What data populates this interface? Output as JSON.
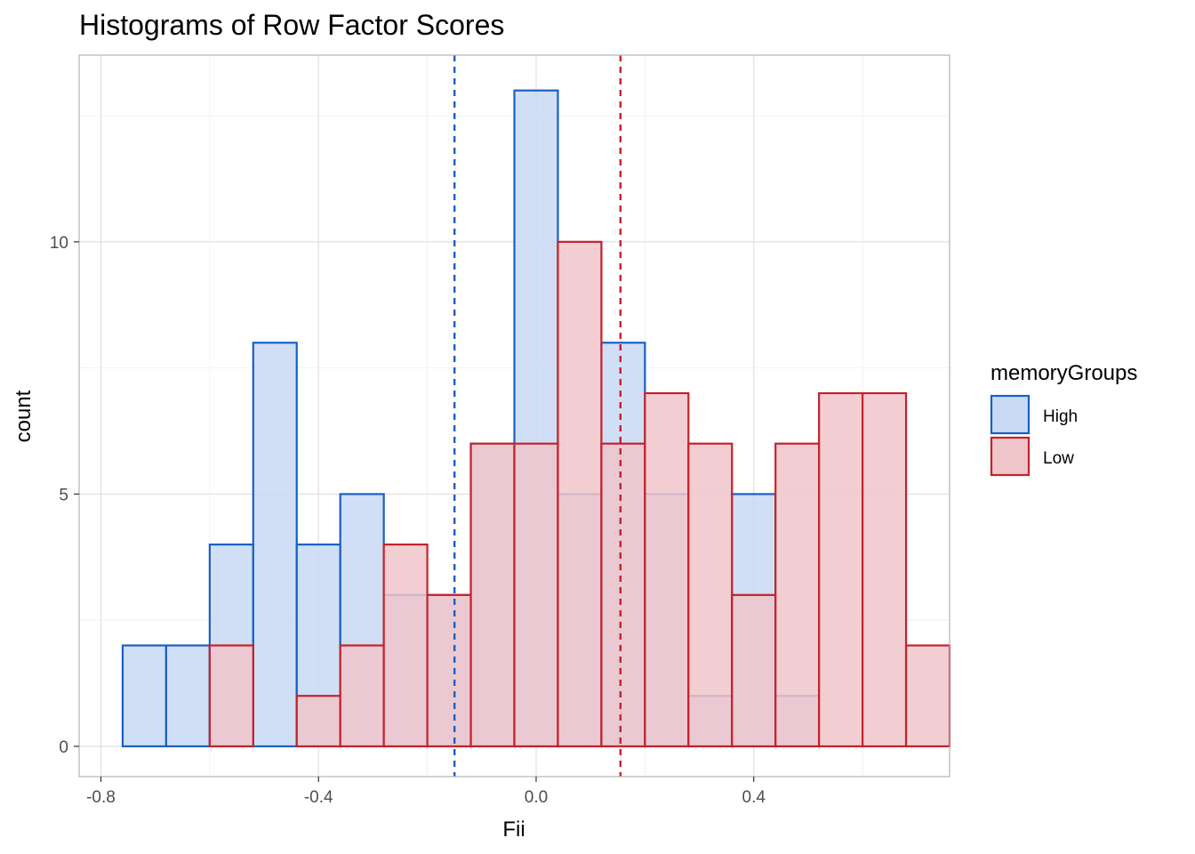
{
  "chart_data": {
    "type": "histogram",
    "title": "Histograms of Row Factor Scores",
    "xlabel": "Fii",
    "ylabel": "count",
    "xlim": [
      -0.84,
      0.76
    ],
    "ylim": [
      -0.6,
      13.7
    ],
    "x_ticks": [
      -0.8,
      -0.4,
      0.0,
      0.4
    ],
    "x_tick_labels": [
      "-0.8",
      "-0.4",
      "0.0",
      "0.4"
    ],
    "y_ticks": [
      0,
      5,
      10
    ],
    "y_tick_labels": [
      "0",
      "5",
      "10"
    ],
    "grid": true,
    "legend": {
      "title": "memoryGroups",
      "placement": "right"
    },
    "bin_start": -0.76,
    "bin_width": 0.08,
    "series": [
      {
        "name": "High",
        "line_color": "#1a5fc4",
        "fill_color": "#c8d9f3",
        "counts": [
          2,
          2,
          4,
          8,
          4,
          5,
          3,
          3,
          6,
          13,
          5,
          8,
          5,
          1,
          5,
          1,
          0,
          0,
          0
        ],
        "mean": -0.15
      },
      {
        "name": "Low",
        "line_color": "#c4222b",
        "fill_color": "#f0c6cb",
        "counts": [
          0,
          0,
          2,
          0,
          1,
          2,
          4,
          3,
          6,
          6,
          10,
          6,
          7,
          6,
          3,
          6,
          7,
          7,
          2
        ],
        "mean": 0.155
      }
    ]
  }
}
